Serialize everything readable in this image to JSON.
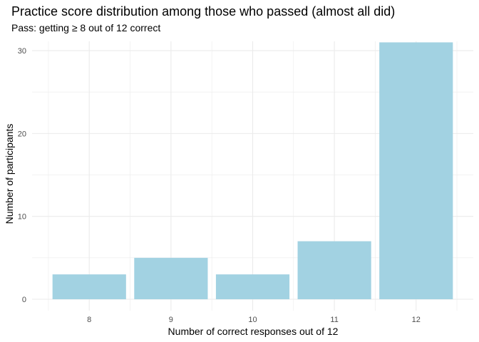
{
  "chart_data": {
    "type": "bar",
    "title": "Practice score distribution among those who passed (almost all did)",
    "subtitle": "Pass: getting ≥ 8 out of 12 correct",
    "xlabel": "Number of correct responses out of 12",
    "ylabel": "Number of participants",
    "categories": [
      "8",
      "9",
      "10",
      "11",
      "12"
    ],
    "values": [
      3,
      5,
      3,
      7,
      31
    ],
    "ylim": [
      0,
      32.5
    ],
    "yticks": [
      0,
      10,
      20,
      30
    ],
    "yticks_minor": [
      5,
      15,
      25
    ],
    "grid": true,
    "bar_color": "#a2d2e2",
    "grid_color": "#ebebeb"
  }
}
